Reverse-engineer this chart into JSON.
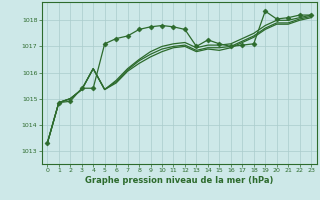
{
  "title": "Graphe pression niveau de la mer (hPa)",
  "bg_color": "#cde8e8",
  "grid_color": "#aacccc",
  "line_color": "#2d6b2d",
  "xlim": [
    -0.5,
    23.5
  ],
  "ylim": [
    1012.5,
    1018.7
  ],
  "yticks": [
    1013,
    1014,
    1015,
    1016,
    1017,
    1018
  ],
  "xticks": [
    0,
    1,
    2,
    3,
    4,
    5,
    6,
    7,
    8,
    9,
    10,
    11,
    12,
    13,
    14,
    15,
    16,
    17,
    18,
    19,
    20,
    21,
    22,
    23
  ],
  "series": [
    [
      1013.3,
      1014.85,
      1014.9,
      1015.4,
      1015.4,
      1017.1,
      1017.3,
      1017.4,
      1017.65,
      1017.75,
      1017.8,
      1017.75,
      1017.65,
      1017.0,
      1017.25,
      1017.1,
      1017.0,
      1017.05,
      1017.1,
      1018.35,
      1018.05,
      1018.1,
      1018.2,
      1018.2
    ],
    [
      1013.3,
      1014.85,
      1015.0,
      1015.35,
      1016.15,
      1015.35,
      1015.7,
      1016.15,
      1016.5,
      1016.8,
      1017.0,
      1017.1,
      1017.15,
      1016.95,
      1017.05,
      1017.05,
      1017.1,
      1017.3,
      1017.5,
      1017.8,
      1018.0,
      1018.0,
      1018.1,
      1018.2
    ],
    [
      1013.3,
      1014.85,
      1015.0,
      1015.35,
      1016.15,
      1015.35,
      1015.65,
      1016.1,
      1016.45,
      1016.7,
      1016.9,
      1017.0,
      1017.05,
      1016.85,
      1016.95,
      1016.95,
      1017.0,
      1017.2,
      1017.4,
      1017.7,
      1017.9,
      1017.9,
      1018.05,
      1018.15
    ],
    [
      1013.3,
      1014.85,
      1015.0,
      1015.35,
      1016.15,
      1015.35,
      1015.6,
      1016.05,
      1016.35,
      1016.6,
      1016.8,
      1016.95,
      1017.0,
      1016.8,
      1016.9,
      1016.85,
      1016.95,
      1017.15,
      1017.35,
      1017.65,
      1017.85,
      1017.85,
      1018.0,
      1018.1
    ]
  ],
  "marker": "D",
  "marker_size": 2.5
}
